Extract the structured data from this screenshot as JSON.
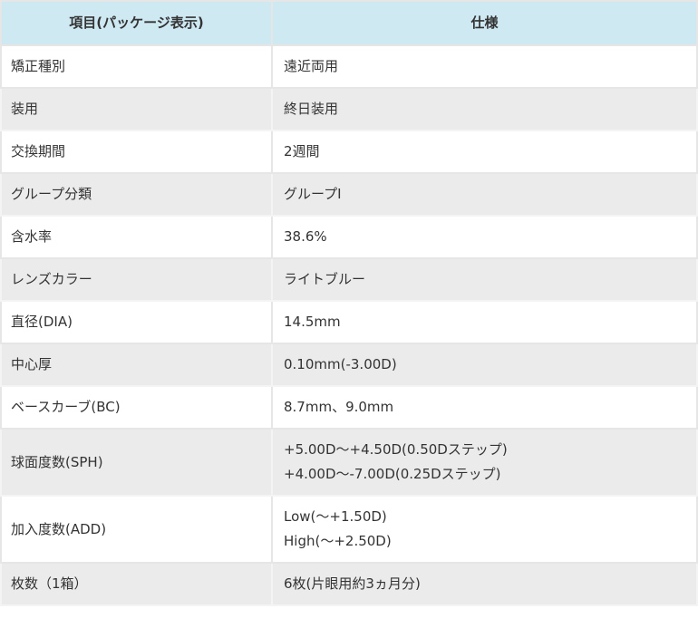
{
  "header": {
    "item": "項目(パッケージ表示)",
    "spec": "仕様"
  },
  "rows": [
    {
      "label": "矯正種別",
      "value": [
        "遠近両用"
      ]
    },
    {
      "label": "装用",
      "value": [
        "終日装用"
      ]
    },
    {
      "label": "交換期間",
      "value": [
        "2週間"
      ]
    },
    {
      "label": "グループ分類",
      "value": [
        "グループI"
      ]
    },
    {
      "label": "含水率",
      "value": [
        "38.6%"
      ]
    },
    {
      "label": "レンズカラー",
      "value": [
        "ライトブルー"
      ]
    },
    {
      "label": "直径(DIA)",
      "value": [
        "14.5mm"
      ]
    },
    {
      "label": "中心厚",
      "value": [
        "0.10mm(-3.00D)"
      ]
    },
    {
      "label": "ベースカーブ(BC)",
      "value": [
        "8.7mm、9.0mm"
      ]
    },
    {
      "label": "球面度数(SPH)",
      "value": [
        "+5.00D～+4.50D(0.50Dステップ)",
        "+4.00D～-7.00D(0.25Dステップ)"
      ]
    },
    {
      "label": "加入度数(ADD)",
      "value": [
        "Low(～+1.50D)",
        "High(～+2.50D)"
      ]
    },
    {
      "label": "枚数（1箱）",
      "value": [
        "6枚(片眼用約3ヵ月分)"
      ]
    }
  ],
  "colors": {
    "header_bg": "#cfe9f3",
    "row_alt_bg": "#ebebeb",
    "text": "#333333"
  }
}
